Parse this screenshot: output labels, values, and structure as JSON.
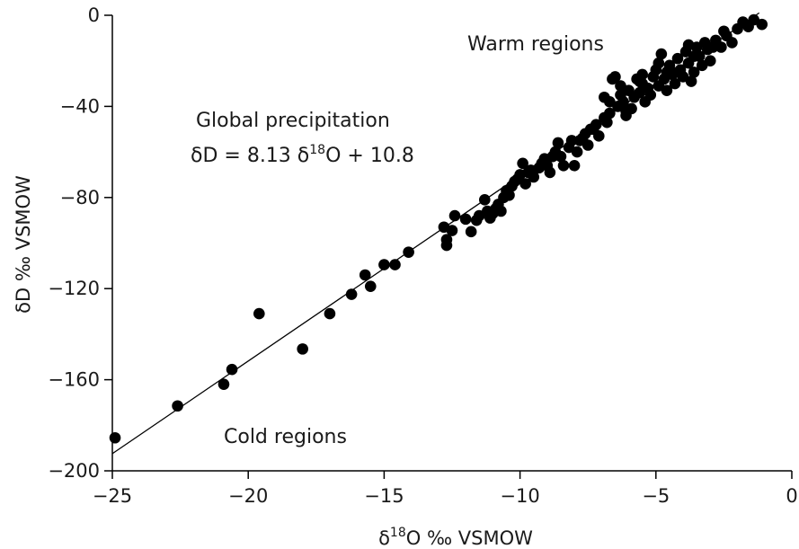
{
  "chart_data": {
    "type": "scatter",
    "xlabel": {
      "prefix": "δ",
      "sup": "18",
      "rest": "O ‰ VSMOW"
    },
    "ylabel": "δD ‰ VSMOW",
    "xlim": [
      -25,
      0
    ],
    "ylim": [
      -200,
      0
    ],
    "xticks": [
      -25,
      -20,
      -15,
      -10,
      -5,
      0
    ],
    "yticks": [
      0,
      -40,
      -80,
      -120,
      -160,
      -200
    ],
    "xtick_labels": [
      "−25",
      "−20",
      "−15",
      "−10",
      "−5",
      "0"
    ],
    "ytick_labels": [
      "0",
      "−40",
      "−80",
      "−120",
      "−160",
      "−200"
    ],
    "grid": false,
    "fit_line": {
      "slope": 8.13,
      "intercept": 10.8,
      "x_range": [
        -25,
        -1.2
      ]
    },
    "annotations": {
      "warm": "Warm regions",
      "cold": "Cold regions",
      "global_title": "Global precipitation",
      "equation": {
        "a": "δD = 8.13 δ",
        "sup": "18",
        "b": "O + 10.8"
      }
    },
    "points": [
      [
        -24.9,
        -185.5
      ],
      [
        -22.6,
        -171.5
      ],
      [
        -20.9,
        -162
      ],
      [
        -20.6,
        -155.5
      ],
      [
        -19.6,
        -131
      ],
      [
        -18,
        -146.5
      ],
      [
        -17,
        -131
      ],
      [
        -16.2,
        -122.5
      ],
      [
        -15.7,
        -114
      ],
      [
        -15.5,
        -119
      ],
      [
        -15,
        -109.5
      ],
      [
        -14.6,
        -109.5
      ],
      [
        -14.1,
        -104
      ],
      [
        -12.8,
        -93
      ],
      [
        -12.7,
        -98.5
      ],
      [
        -12.7,
        -101
      ],
      [
        -12.5,
        -94.5
      ],
      [
        -12.4,
        -88
      ],
      [
        -12,
        -89.5
      ],
      [
        -11.8,
        -95
      ],
      [
        -11.5,
        -88
      ],
      [
        -11.3,
        -81
      ],
      [
        -11.2,
        -86
      ],
      [
        -11.1,
        -89
      ],
      [
        -11,
        -87
      ],
      [
        -10.9,
        -85
      ],
      [
        -10.8,
        -83
      ],
      [
        -10.7,
        -86
      ],
      [
        -10.6,
        -80
      ],
      [
        -10.5,
        -77
      ],
      [
        -10.3,
        -75
      ],
      [
        -10.1,
        -72
      ],
      [
        -10,
        -70
      ],
      [
        -9.9,
        -65
      ],
      [
        -9.8,
        -74
      ],
      [
        -9.6,
        -68
      ],
      [
        -9.5,
        -71
      ],
      [
        -9.3,
        -67
      ],
      [
        -9.1,
        -63
      ],
      [
        -9,
        -66
      ],
      [
        -8.9,
        -69
      ],
      [
        -8.7,
        -60
      ],
      [
        -8.5,
        -62
      ],
      [
        -8.4,
        -66
      ],
      [
        -8.2,
        -58
      ],
      [
        -8.1,
        -55
      ],
      [
        -8,
        -66
      ],
      [
        -7.9,
        -60
      ],
      [
        -7.8,
        -55
      ],
      [
        -7.6,
        -52
      ],
      [
        -7.5,
        -57
      ],
      [
        -7.4,
        -50
      ],
      [
        -7.2,
        -48
      ],
      [
        -7.1,
        -53
      ],
      [
        -6.9,
        -45
      ],
      [
        -6.9,
        -36
      ],
      [
        -6.8,
        -47
      ],
      [
        -6.7,
        -43
      ],
      [
        -6.6,
        -28
      ],
      [
        -6.5,
        -27
      ],
      [
        -6.4,
        -40
      ],
      [
        -6.3,
        -35
      ],
      [
        -6.2,
        -38
      ],
      [
        -6.1,
        -44
      ],
      [
        -6,
        -33
      ],
      [
        -5.9,
        -41
      ],
      [
        -5.8,
        -36
      ],
      [
        -5.7,
        -28
      ],
      [
        -5.6,
        -34
      ],
      [
        -5.5,
        -30
      ],
      [
        -5.4,
        -38
      ],
      [
        -5.3,
        -32
      ],
      [
        -5.2,
        -35
      ],
      [
        -5.1,
        -27
      ],
      [
        -5,
        -24
      ],
      [
        -4.9,
        -31
      ],
      [
        -4.8,
        -17
      ],
      [
        -4.7,
        -28
      ],
      [
        -4.6,
        -33
      ],
      [
        -4.5,
        -22
      ],
      [
        -4.4,
        -26
      ],
      [
        -4.3,
        -30
      ],
      [
        -4.2,
        -19
      ],
      [
        -4.1,
        -24
      ],
      [
        -4,
        -27
      ],
      [
        -3.9,
        -16
      ],
      [
        -3.8,
        -21
      ],
      [
        -3.7,
        -29
      ],
      [
        -3.6,
        -25
      ],
      [
        -3.5,
        -14
      ],
      [
        -3.4,
        -18
      ],
      [
        -3.3,
        -22
      ],
      [
        -3.2,
        -12
      ],
      [
        -3.1,
        -15
      ],
      [
        -3,
        -20
      ],
      [
        -2.8,
        -11
      ],
      [
        -2.6,
        -14
      ],
      [
        -2.4,
        -9
      ],
      [
        -2.2,
        -12
      ],
      [
        -2,
        -6
      ],
      [
        -1.8,
        -3
      ],
      [
        -1.6,
        -5
      ],
      [
        -1.4,
        -2
      ],
      [
        -1.1,
        -4
      ],
      [
        -8.6,
        -56
      ],
      [
        -9.7,
        -69
      ],
      [
        -10.4,
        -79
      ],
      [
        -11.6,
        -90
      ],
      [
        -7.3,
        -50
      ],
      [
        -6.3,
        -31
      ],
      [
        -5.5,
        -26
      ],
      [
        -4.9,
        -21
      ],
      [
        -4.2,
        -25
      ],
      [
        -3.6,
        -18
      ],
      [
        -2.9,
        -14
      ],
      [
        -6.1,
        -42
      ],
      [
        -7.7,
        -54
      ],
      [
        -8.8,
        -62
      ],
      [
        -9.2,
        -65
      ],
      [
        -10.2,
        -73
      ],
      [
        -5.6,
        -29
      ],
      [
        -4.6,
        -25
      ],
      [
        -3.8,
        -13
      ],
      [
        -2.5,
        -7
      ],
      [
        -6.7,
        -38
      ]
    ]
  }
}
